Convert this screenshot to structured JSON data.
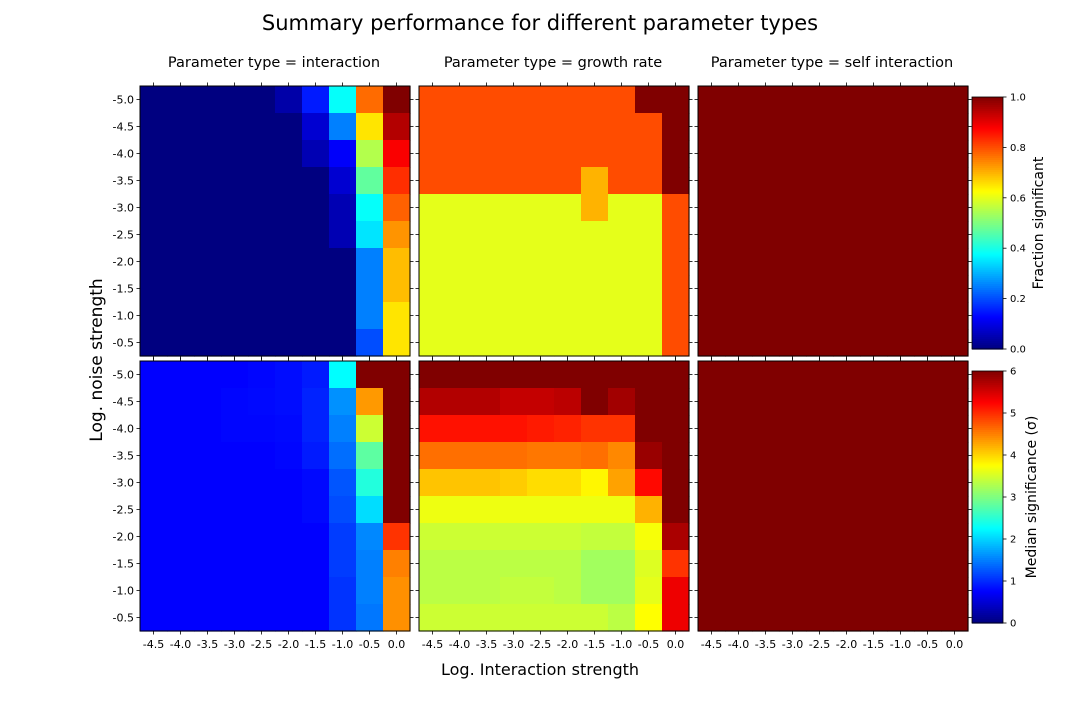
{
  "title": "Summary performance for different parameter types",
  "xlabel": "Log. Interaction strength",
  "ylabel": "Log. noise strength",
  "colormap": "jet",
  "chart_data": {
    "type": "heatmap",
    "x_categories": [
      "-4.5",
      "-4.0",
      "-3.5",
      "-3.0",
      "-2.5",
      "-2.0",
      "-1.5",
      "-1.0",
      "-0.5",
      "0.0"
    ],
    "y_categories": [
      "-5.0",
      "-4.5",
      "-4.0",
      "-3.5",
      "-3.0",
      "-2.5",
      "-2.0",
      "-1.5",
      "-1.0",
      "-0.5"
    ],
    "columns": [
      {
        "title": "Parameter type = interaction"
      },
      {
        "title": "Parameter type = growth rate"
      },
      {
        "title": "Parameter type = self interaction"
      }
    ],
    "rows": [
      {
        "colorbar_label": "Fraction significant",
        "vmin": 0,
        "vmax": 1,
        "colorbar_ticks": [
          "0.0",
          "0.2",
          "0.4",
          "0.6",
          "0.8",
          "1.0"
        ]
      },
      {
        "colorbar_label": "Median significance (σ)",
        "vmin": 0,
        "vmax": 6,
        "colorbar_ticks": [
          "0",
          "1",
          "2",
          "3",
          "4",
          "5",
          "6"
        ]
      }
    ],
    "panels": [
      {
        "row": 0,
        "col": 0,
        "values": [
          [
            0,
            0,
            0,
            0,
            0,
            0.04,
            0.15,
            0.38,
            0.77,
            1.0
          ],
          [
            0,
            0,
            0,
            0,
            0,
            0,
            0.08,
            0.25,
            0.65,
            0.95
          ],
          [
            0,
            0,
            0,
            0,
            0,
            0,
            0.05,
            0.12,
            0.55,
            0.88
          ],
          [
            0,
            0,
            0,
            0,
            0,
            0,
            0,
            0.08,
            0.47,
            0.83
          ],
          [
            0,
            0,
            0,
            0,
            0,
            0,
            0,
            0.05,
            0.38,
            0.78
          ],
          [
            0,
            0,
            0,
            0,
            0,
            0,
            0,
            0.05,
            0.35,
            0.73
          ],
          [
            0,
            0,
            0,
            0,
            0,
            0,
            0,
            0,
            0.25,
            0.69
          ],
          [
            0,
            0,
            0,
            0,
            0,
            0,
            0,
            0,
            0.25,
            0.69
          ],
          [
            0,
            0,
            0,
            0,
            0,
            0,
            0,
            0,
            0.25,
            0.65
          ],
          [
            0,
            0,
            0,
            0,
            0,
            0,
            0,
            0,
            0.2,
            0.65
          ]
        ]
      },
      {
        "row": 0,
        "col": 1,
        "values": [
          [
            0.8,
            0.8,
            0.8,
            0.8,
            0.8,
            0.8,
            0.8,
            0.8,
            1.0,
            1.0
          ],
          [
            0.8,
            0.8,
            0.8,
            0.8,
            0.8,
            0.8,
            0.8,
            0.8,
            0.8,
            1.0
          ],
          [
            0.8,
            0.8,
            0.8,
            0.8,
            0.8,
            0.8,
            0.8,
            0.8,
            0.8,
            1.0
          ],
          [
            0.8,
            0.8,
            0.8,
            0.8,
            0.8,
            0.8,
            0.7,
            0.8,
            0.8,
            1.0
          ],
          [
            0.6,
            0.6,
            0.6,
            0.6,
            0.6,
            0.6,
            0.7,
            0.6,
            0.6,
            0.8
          ],
          [
            0.6,
            0.6,
            0.6,
            0.6,
            0.6,
            0.6,
            0.6,
            0.6,
            0.6,
            0.8
          ],
          [
            0.6,
            0.6,
            0.6,
            0.6,
            0.6,
            0.6,
            0.6,
            0.6,
            0.6,
            0.8
          ],
          [
            0.6,
            0.6,
            0.6,
            0.6,
            0.6,
            0.6,
            0.6,
            0.6,
            0.6,
            0.8
          ],
          [
            0.6,
            0.6,
            0.6,
            0.6,
            0.6,
            0.6,
            0.6,
            0.6,
            0.6,
            0.8
          ],
          [
            0.6,
            0.6,
            0.6,
            0.6,
            0.6,
            0.6,
            0.6,
            0.6,
            0.6,
            0.8
          ]
        ]
      },
      {
        "row": 0,
        "col": 2,
        "values": [
          [
            1,
            1,
            1,
            1,
            1,
            1,
            1,
            1,
            1,
            1
          ],
          [
            1,
            1,
            1,
            1,
            1,
            1,
            1,
            1,
            1,
            1
          ],
          [
            1,
            1,
            1,
            1,
            1,
            1,
            1,
            1,
            1,
            1
          ],
          [
            1,
            1,
            1,
            1,
            1,
            1,
            1,
            1,
            1,
            1
          ],
          [
            1,
            1,
            1,
            1,
            1,
            1,
            1,
            1,
            1,
            1
          ],
          [
            1,
            1,
            1,
            1,
            1,
            1,
            1,
            1,
            1,
            1
          ],
          [
            1,
            1,
            1,
            1,
            1,
            1,
            1,
            1,
            1,
            1
          ],
          [
            1,
            1,
            1,
            1,
            1,
            1,
            1,
            1,
            1,
            1
          ],
          [
            1,
            1,
            1,
            1,
            1,
            1,
            1,
            1,
            1,
            1
          ],
          [
            1,
            1,
            1,
            1,
            1,
            1,
            1,
            1,
            1,
            1
          ]
        ]
      },
      {
        "row": 1,
        "col": 0,
        "values": [
          [
            0.75,
            0.75,
            0.75,
            0.75,
            0.78,
            0.82,
            0.9,
            2.25,
            6,
            6
          ],
          [
            0.75,
            0.75,
            0.75,
            0.78,
            0.8,
            0.82,
            0.95,
            1.6,
            4.35,
            6
          ],
          [
            0.75,
            0.75,
            0.75,
            0.78,
            0.78,
            0.8,
            0.95,
            1.5,
            3.45,
            6
          ],
          [
            0.75,
            0.75,
            0.75,
            0.75,
            0.75,
            0.78,
            0.9,
            1.4,
            2.8,
            6
          ],
          [
            0.75,
            0.75,
            0.75,
            0.75,
            0.75,
            0.75,
            0.8,
            1.25,
            2.45,
            6
          ],
          [
            0.75,
            0.75,
            0.75,
            0.75,
            0.75,
            0.75,
            0.8,
            1.2,
            2.05,
            6
          ],
          [
            0.75,
            0.75,
            0.75,
            0.75,
            0.75,
            0.75,
            0.75,
            1.1,
            1.55,
            4.95
          ],
          [
            0.75,
            0.75,
            0.75,
            0.75,
            0.75,
            0.75,
            0.75,
            1.1,
            1.5,
            4.5
          ],
          [
            0.75,
            0.75,
            0.75,
            0.75,
            0.75,
            0.75,
            0.75,
            1.05,
            1.5,
            4.4
          ],
          [
            0.75,
            0.75,
            0.75,
            0.75,
            0.75,
            0.75,
            0.75,
            1.05,
            1.45,
            4.4
          ]
        ]
      },
      {
        "row": 1,
        "col": 1,
        "values": [
          [
            6,
            6,
            6,
            6,
            6,
            6,
            6,
            6,
            6,
            6
          ],
          [
            5.7,
            5.7,
            5.7,
            5.6,
            5.6,
            5.65,
            6,
            5.8,
            6,
            6
          ],
          [
            5.15,
            5.15,
            5.15,
            5.15,
            5.1,
            5.05,
            4.95,
            4.95,
            6,
            6
          ],
          [
            4.6,
            4.6,
            4.6,
            4.6,
            4.55,
            4.55,
            4.6,
            4.45,
            5.85,
            6
          ],
          [
            4.1,
            4.1,
            4.1,
            4.05,
            3.95,
            3.95,
            3.8,
            4.3,
            5.2,
            6
          ],
          [
            3.65,
            3.65,
            3.65,
            3.65,
            3.65,
            3.65,
            3.65,
            3.65,
            4.2,
            6
          ],
          [
            3.45,
            3.45,
            3.45,
            3.45,
            3.45,
            3.45,
            3.4,
            3.4,
            3.7,
            5.75
          ],
          [
            3.35,
            3.35,
            3.35,
            3.35,
            3.35,
            3.35,
            3.2,
            3.2,
            3.55,
            4.95
          ],
          [
            3.35,
            3.35,
            3.35,
            3.4,
            3.4,
            3.35,
            3.2,
            3.2,
            3.6,
            5.35
          ],
          [
            3.45,
            3.45,
            3.45,
            3.45,
            3.45,
            3.45,
            3.45,
            3.35,
            3.75,
            5.35
          ]
        ]
      },
      {
        "row": 1,
        "col": 2,
        "values": [
          [
            6,
            6,
            6,
            6,
            6,
            6,
            6,
            6,
            6,
            6
          ],
          [
            6,
            6,
            6,
            6,
            6,
            6,
            6,
            6,
            6,
            6
          ],
          [
            6,
            6,
            6,
            6,
            6,
            6,
            6,
            6,
            6,
            6
          ],
          [
            6,
            6,
            6,
            6,
            6,
            6,
            6,
            6,
            6,
            6
          ],
          [
            6,
            6,
            6,
            6,
            6,
            6,
            6,
            6,
            6,
            6
          ],
          [
            6,
            6,
            6,
            6,
            6,
            6,
            6,
            6,
            6,
            6
          ],
          [
            6,
            6,
            6,
            6,
            6,
            6,
            6,
            6,
            6,
            6
          ],
          [
            6,
            6,
            6,
            6,
            6,
            6,
            6,
            6,
            6,
            6
          ],
          [
            6,
            6,
            6,
            6,
            6,
            6,
            6,
            6,
            6,
            6
          ],
          [
            6,
            6,
            6,
            6,
            6,
            6,
            6,
            6,
            6,
            6
          ]
        ]
      }
    ]
  }
}
